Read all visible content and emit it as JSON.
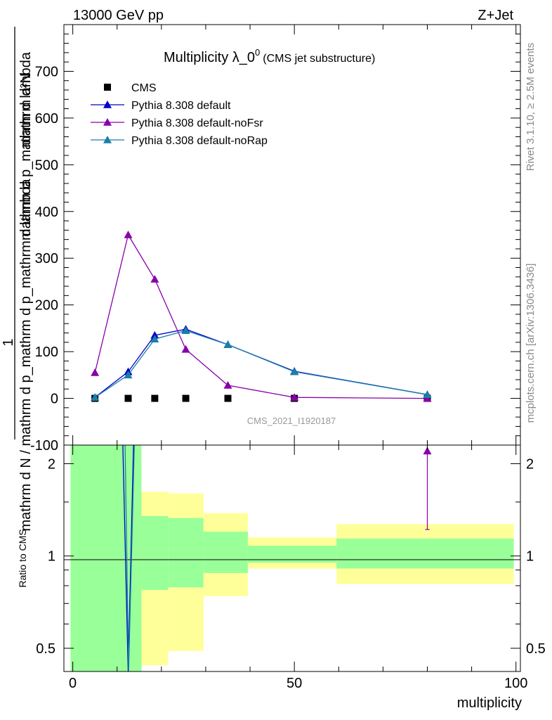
{
  "header": {
    "energy_label": "13000 GeV pp",
    "process_label": "Z+Jet"
  },
  "side": {
    "rivet_label": "Rivet 3.1.10, ≥ 2.5M events",
    "mcplots_label": "mcplots.cern.ch [arXiv:1306.3436]"
  },
  "chart_data": [
    {
      "type": "line",
      "panel": "main",
      "title_main": "Multiplicity λ_0",
      "title_sup": "0",
      "title_sub": "(CMS jet substructure)",
      "ylabel_numerator": "1",
      "ylabel_denominator": "mathrm d N / mathrm d p_mathrm d p_mathrm d lambda",
      "ylabel_top": "mathrm d²N",
      "ylabel_mid": "mathrm d p_mathrm d lambda",
      "ylim": [
        -100,
        800
      ],
      "yticks": [
        -100,
        0,
        100,
        200,
        300,
        400,
        500,
        600,
        700
      ],
      "xlim": [
        -2,
        101
      ],
      "analysis_label": "CMS_2021_I1920187",
      "legend_position": "top-left",
      "series": [
        {
          "name": "CMS",
          "color": "#000000",
          "marker": "square",
          "x": [
            5,
            12.5,
            18.5,
            25.5,
            35,
            50,
            80
          ],
          "y": [
            0,
            0,
            0,
            0,
            0,
            0,
            0
          ]
        },
        {
          "name": "Pythia 8.308 default",
          "color": "#0000cc",
          "marker": "triangle",
          "x": [
            5,
            12.5,
            18.5,
            25.5,
            35,
            50,
            80
          ],
          "y": [
            2,
            57,
            135,
            148,
            115,
            58,
            8
          ]
        },
        {
          "name": "Pythia 8.308 default-noFsr",
          "color": "#8800aa",
          "marker": "triangle",
          "x": [
            5,
            12.5,
            18.5,
            25.5,
            35,
            50,
            80
          ],
          "y": [
            55,
            350,
            255,
            105,
            28,
            2,
            0
          ]
        },
        {
          "name": "Pythia 8.308 default-noRap",
          "color": "#1a7fa8",
          "marker": "triangle",
          "x": [
            5,
            12.5,
            18.5,
            25.5,
            35,
            50,
            80
          ],
          "y": [
            2,
            50,
            127,
            145,
            115,
            57,
            8
          ]
        }
      ]
    },
    {
      "type": "line",
      "panel": "ratio",
      "ylabel": "Ratio to CMS",
      "xlabel": "multiplicity",
      "ylim": [
        0.42,
        2.3
      ],
      "yticks": [
        0.5,
        1,
        2
      ],
      "xticks": [
        0,
        50,
        100
      ],
      "xlim": [
        -2,
        101
      ],
      "bands": [
        {
          "x0": -0.5,
          "x1": 15.5,
          "green": [
            0.42,
            2.3
          ],
          "yellow": [
            0.42,
            2.3
          ]
        },
        {
          "x0": 15.5,
          "x1": 21.5,
          "green": [
            0.775,
            1.35
          ],
          "yellow": [
            0.44,
            1.62
          ]
        },
        {
          "x0": 21.5,
          "x1": 29.5,
          "green": [
            0.79,
            1.33
          ],
          "yellow": [
            0.49,
            1.6
          ]
        },
        {
          "x0": 29.5,
          "x1": 39.5,
          "green": [
            0.88,
            1.2
          ],
          "yellow": [
            0.74,
            1.38
          ]
        },
        {
          "x0": 39.5,
          "x1": 59.5,
          "green": [
            0.95,
            1.08
          ],
          "yellow": [
            0.91,
            1.15
          ]
        },
        {
          "x0": 59.5,
          "x1": 99.5,
          "green": [
            0.91,
            1.14
          ],
          "yellow": [
            0.81,
            1.27
          ]
        }
      ],
      "series": [
        {
          "name": "Pythia 8.308 default",
          "color": "#0000cc",
          "x": [
            11.3,
            12.5,
            13.7
          ],
          "y": [
            2.3,
            0.42,
            2.3
          ]
        },
        {
          "name": "Pythia 8.308 default-noFsr",
          "color": "#8800aa",
          "x": [
            80
          ],
          "y": [
            2.2
          ],
          "err_low": [
            1.22
          ]
        },
        {
          "name": "Pythia 8.308 default-noRap",
          "color": "#1a7fa8",
          "x": [
            11.8,
            12.6,
            13.9
          ],
          "y": [
            2.3,
            0.42,
            2.3
          ]
        }
      ]
    }
  ]
}
